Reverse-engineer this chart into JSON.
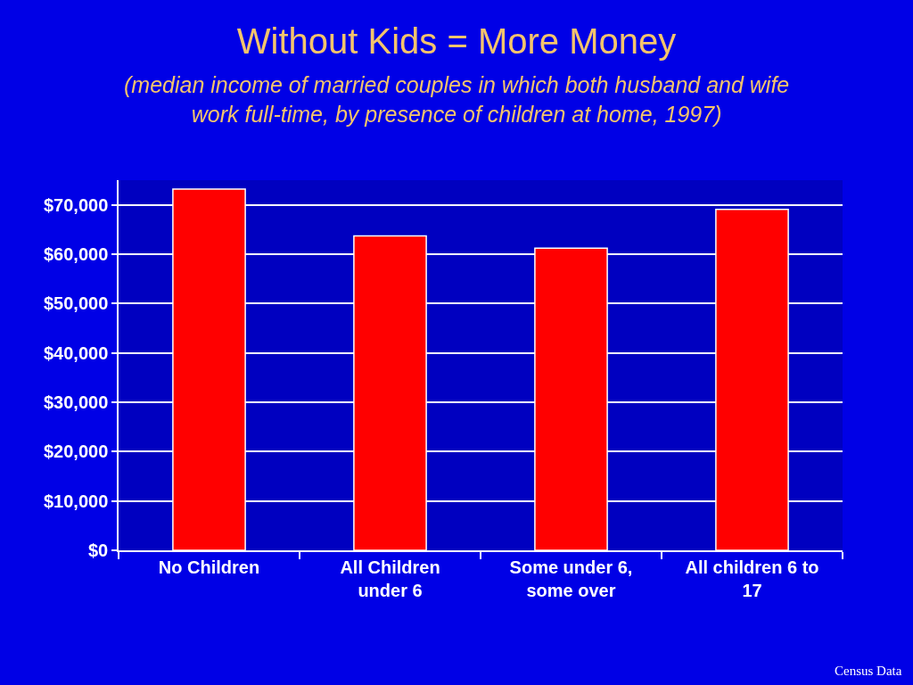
{
  "chart_data": {
    "type": "bar",
    "title": "Without Kids = More Money",
    "subtitle": "(median income of married couples in which both husband and wife work full-time, by presence of children at home, 1997)",
    "categories": [
      "No Children",
      "All Children under 6",
      "Some under 6, some over",
      "All children 6 to 17"
    ],
    "values": [
      73200,
      63700,
      61200,
      69100
    ],
    "color": "#ff0000",
    "ylim": [
      0,
      75000
    ],
    "yticks": [
      {
        "value": 0,
        "label": "$0"
      },
      {
        "value": 10000,
        "label": "$10,000"
      },
      {
        "value": 20000,
        "label": "$20,000"
      },
      {
        "value": 30000,
        "label": "$30,000"
      },
      {
        "value": 40000,
        "label": "$40,000"
      },
      {
        "value": 50000,
        "label": "$50,000"
      },
      {
        "value": 60000,
        "label": "$60,000"
      },
      {
        "value": 70000,
        "label": "$70,000"
      }
    ],
    "grid": "y",
    "annotations": [
      "Census Data"
    ]
  }
}
